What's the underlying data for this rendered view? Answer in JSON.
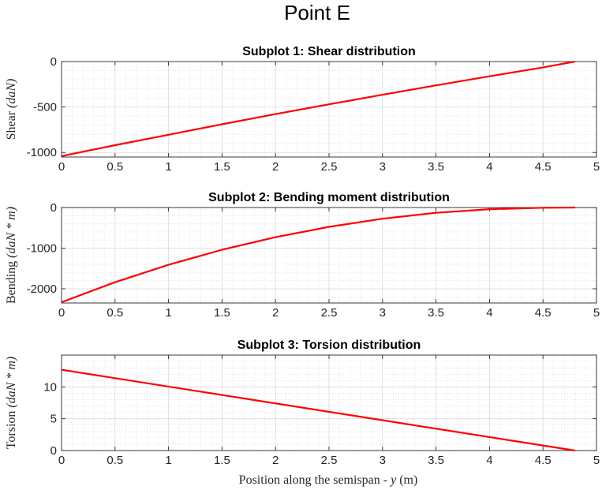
{
  "figure": {
    "suptitle": "Point E",
    "xlabel_prefix": "Position along the semispan - ",
    "xlabel_var": "y",
    "xlabel_suffix": " (m)"
  },
  "chart_data": [
    {
      "type": "line",
      "title": "Subplot 1: Shear distribution",
      "ylabel_text": "Shear",
      "ylabel_unit": "(daN)",
      "xlim": [
        0,
        5
      ],
      "ylim": [
        -1050,
        0
      ],
      "xticks": [
        0,
        0.5,
        1,
        1.5,
        2,
        2.5,
        3,
        3.5,
        4,
        4.5,
        5
      ],
      "yticks": [
        -1000,
        -500,
        0
      ],
      "grid": true,
      "minor_grid": true,
      "color": "#ff0000",
      "series": [
        {
          "x": [
            0,
            0.5,
            1,
            1.5,
            2,
            2.5,
            3,
            3.5,
            4,
            4.5,
            4.8
          ],
          "y": [
            -1040,
            -920,
            -805,
            -690,
            -578,
            -470,
            -365,
            -262,
            -162,
            -64,
            0
          ]
        }
      ]
    },
    {
      "type": "line",
      "title": "Subplot 2: Bending moment distribution",
      "ylabel_text": "Bending",
      "ylabel_unit": "(daN * m)",
      "xlim": [
        0,
        5
      ],
      "ylim": [
        -2350,
        0
      ],
      "xticks": [
        0,
        0.5,
        1,
        1.5,
        2,
        2.5,
        3,
        3.5,
        4,
        4.5,
        5
      ],
      "yticks": [
        -2000,
        -1000,
        0
      ],
      "grid": true,
      "minor_grid": true,
      "color": "#ff0000",
      "series": [
        {
          "x": [
            0,
            0.5,
            1,
            1.5,
            2,
            2.5,
            3,
            3.5,
            4,
            4.5,
            4.8
          ],
          "y": [
            -2330,
            -1840,
            -1410,
            -1040,
            -730,
            -475,
            -275,
            -130,
            -40,
            -5,
            0
          ]
        }
      ]
    },
    {
      "type": "line",
      "title": "Subplot 3: Torsion distribution",
      "ylabel_text": "Torsion",
      "ylabel_unit": "(daN * m)",
      "xlim": [
        0,
        5
      ],
      "ylim": [
        0,
        15
      ],
      "xticks": [
        0,
        0.5,
        1,
        1.5,
        2,
        2.5,
        3,
        3.5,
        4,
        4.5,
        5
      ],
      "yticks": [
        0,
        5,
        10
      ],
      "grid": true,
      "minor_grid": true,
      "color": "#ff0000",
      "series": [
        {
          "x": [
            0,
            4.8
          ],
          "y": [
            12.7,
            0
          ]
        }
      ]
    }
  ]
}
